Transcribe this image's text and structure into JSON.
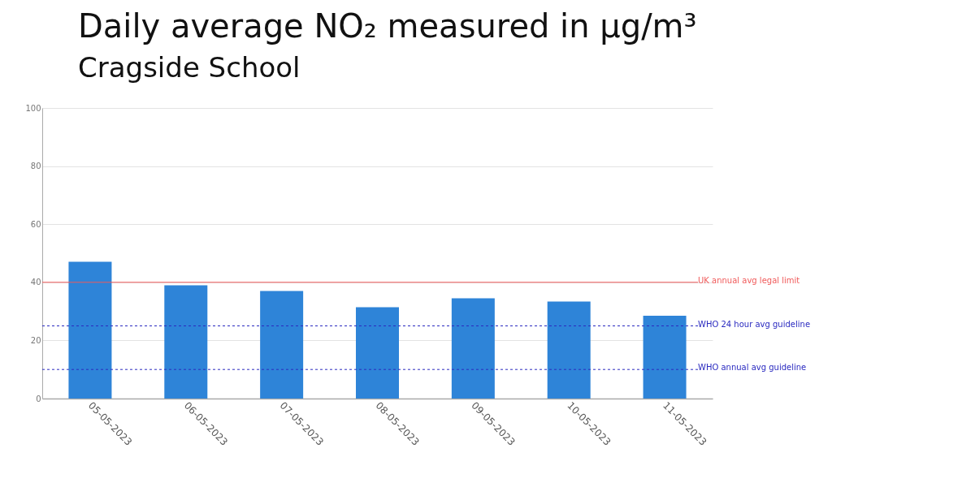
{
  "chart_data": {
    "type": "bar",
    "title": "Daily average NO₂ measured in µg/m³",
    "subtitle": "Cragside School",
    "categories": [
      "05-05-2023",
      "06-05-2023",
      "07-05-2023",
      "08-05-2023",
      "09-05-2023",
      "10-05-2023",
      "11-05-2023"
    ],
    "values": [
      47.1,
      39.0,
      37.0,
      31.4,
      34.5,
      33.4,
      28.5
    ],
    "color": "#2e84d8",
    "ylim": [
      0,
      100
    ],
    "yticks": [
      0,
      20,
      40,
      60,
      80,
      100
    ],
    "grid": "y",
    "ref_lines": [
      {
        "axis": "y",
        "value": 40,
        "label": "UK annual avg legal limit",
        "color": "#f05a5a",
        "line_style": "solid"
      },
      {
        "axis": "y",
        "value": 25,
        "label": "WHO 24 hour avg guideline",
        "color": "#2a2ac0",
        "line_style": "dashed"
      },
      {
        "axis": "y",
        "value": 10,
        "label": "WHO annual avg guideline",
        "color": "#2a2ac0",
        "line_style": "dashed"
      }
    ]
  }
}
